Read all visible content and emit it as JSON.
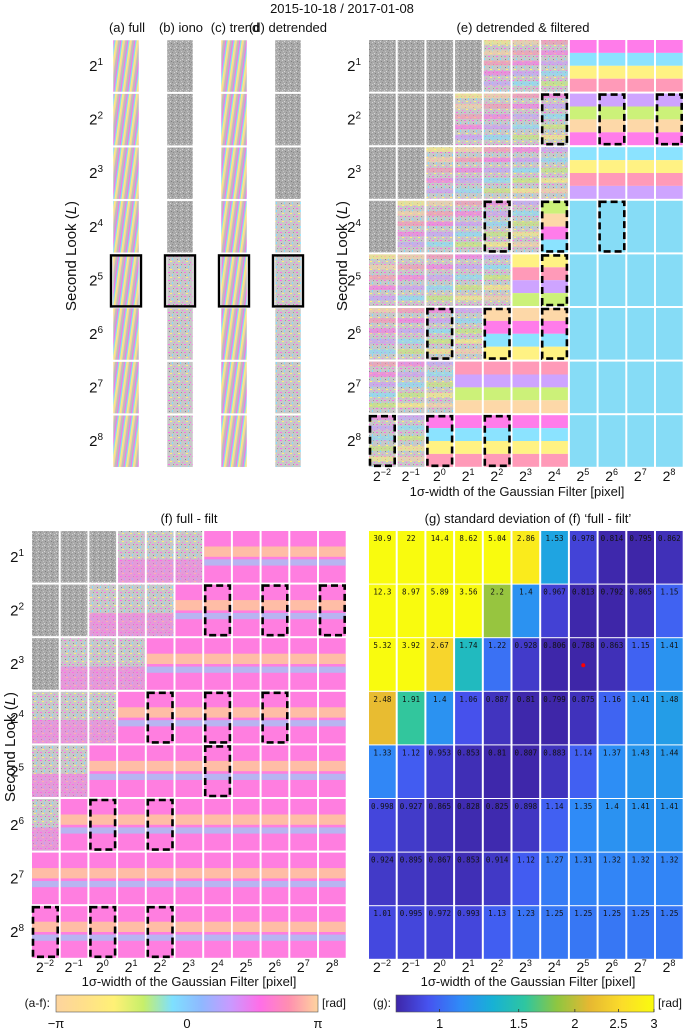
{
  "title": "2015-10-18 / 2017-01-08",
  "row_labels": [
    {
      "base": "2",
      "exp": "1"
    },
    {
      "base": "2",
      "exp": "2"
    },
    {
      "base": "2",
      "exp": "3"
    },
    {
      "base": "2",
      "exp": "4"
    },
    {
      "base": "2",
      "exp": "5"
    },
    {
      "base": "2",
      "exp": "6"
    },
    {
      "base": "2",
      "exp": "7"
    },
    {
      "base": "2",
      "exp": "8"
    }
  ],
  "col_labels": [
    {
      "base": "2",
      "exp": "−2"
    },
    {
      "base": "2",
      "exp": "−1"
    },
    {
      "base": "2",
      "exp": "0"
    },
    {
      "base": "2",
      "exp": "1"
    },
    {
      "base": "2",
      "exp": "2"
    },
    {
      "base": "2",
      "exp": "3"
    },
    {
      "base": "2",
      "exp": "4"
    },
    {
      "base": "2",
      "exp": "5"
    },
    {
      "base": "2",
      "exp": "6"
    },
    {
      "base": "2",
      "exp": "7"
    },
    {
      "base": "2",
      "exp": "8"
    }
  ],
  "ylabel_pre": "Second Look (",
  "ylabel_var": "L",
  "ylabel_post": ")",
  "xlabel": "1σ-width of the Gaussian Filter [pixel]",
  "panels": {
    "a": "(a) full",
    "b": "(b) iono",
    "c": "(c) trend",
    "d": "(d) detrended",
    "e": "(e) detrended & filtered",
    "f": "(f) full - filt",
    "g": "(g) standard deviation of (f) ‘full - filt’"
  },
  "colorbar_phase": {
    "label": "(a-f):",
    "unit": "[rad]",
    "ticks": [
      "−π",
      "0",
      "π"
    ],
    "colors": [
      "#fdd49e",
      "#ffe08a",
      "#fff176",
      "#c6ef6a",
      "#7ee0ff",
      "#8fb8ff",
      "#c99aff",
      "#ff6ee8",
      "#ff8fb0",
      "#fdd49e"
    ]
  },
  "colorbar_std": {
    "label": "(g):",
    "unit": "[rad]",
    "ticks": [
      "1",
      "1.5",
      "2",
      "2.5",
      "3"
    ],
    "colors": [
      "#3e26a8",
      "#4653f0",
      "#2f8bf7",
      "#17b1d5",
      "#2ec6a0",
      "#8fc640",
      "#e6b832",
      "#fbdc2a",
      "#f9fb0e"
    ]
  },
  "chart_data": {
    "type": "heatmap",
    "title": "(g) standard deviation of (f) ‘full - filt’",
    "xlabel": "1σ-width of the Gaussian Filter [pixel]",
    "ylabel": "Second Look (L)",
    "x": [
      "2^-2",
      "2^-1",
      "2^0",
      "2^1",
      "2^2",
      "2^3",
      "2^4",
      "2^5",
      "2^6",
      "2^7",
      "2^8"
    ],
    "y": [
      "2^1",
      "2^2",
      "2^3",
      "2^4",
      "2^5",
      "2^6",
      "2^7",
      "2^8"
    ],
    "values": [
      [
        "30.9",
        "22",
        "14.4",
        "8.62",
        "5.04",
        "2.86",
        "1.53",
        "0.978",
        "0.814",
        "0.795",
        "0.862"
      ],
      [
        "12.3",
        "8.97",
        "5.89",
        "3.56",
        "2.2",
        "1.4",
        "0.967",
        "0.813",
        "0.792",
        "0.865",
        "1.15"
      ],
      [
        "5.32",
        "3.92",
        "2.67",
        "1.74",
        "1.22",
        "0.928",
        "0.806",
        "0.788",
        "0.863",
        "1.15",
        "1.41"
      ],
      [
        "2.48",
        "1.91",
        "1.4",
        "1.06",
        "0.887",
        "0.81",
        "0.799",
        "0.875",
        "1.16",
        "1.41",
        "1.48"
      ],
      [
        "1.33",
        "1.12",
        "0.953",
        "0.853",
        "0.81",
        "0.807",
        "0.883",
        "1.14",
        "1.37",
        "1.43",
        "1.44"
      ],
      [
        "0.998",
        "0.927",
        "0.865",
        "0.828",
        "0.825",
        "0.898",
        "1.14",
        "1.35",
        "1.4",
        "1.41",
        "1.41"
      ],
      [
        "0.924",
        "0.895",
        "0.867",
        "0.853",
        "0.914",
        "1.12",
        "1.27",
        "1.31",
        "1.32",
        "1.32",
        "1.32"
      ],
      [
        "1.01",
        "0.995",
        "0.972",
        "0.993",
        "1.13",
        "1.23",
        "1.25",
        "1.25",
        "1.25",
        "1.25",
        "1.25"
      ]
    ],
    "color_range": [
      0.8,
      3
    ],
    "colorbar_ticks": [
      1,
      1.5,
      2,
      2.5,
      3
    ],
    "highlight_cell": {
      "row": 2,
      "col": 7
    },
    "highlight_color": "#ff0000",
    "selected_cells_e": [
      [
        1,
        6
      ],
      [
        1,
        8
      ],
      [
        1,
        10
      ],
      [
        3,
        4
      ],
      [
        3,
        6
      ],
      [
        3,
        8
      ],
      [
        4,
        6
      ],
      [
        5,
        2
      ],
      [
        5,
        4
      ],
      [
        5,
        6
      ],
      [
        7,
        0
      ],
      [
        7,
        2
      ],
      [
        7,
        4
      ]
    ],
    "selected_cells_f": [
      [
        1,
        6
      ],
      [
        1,
        8
      ],
      [
        1,
        10
      ],
      [
        3,
        4
      ],
      [
        3,
        6
      ],
      [
        3,
        8
      ],
      [
        4,
        6
      ],
      [
        5,
        2
      ],
      [
        5,
        4
      ],
      [
        7,
        0
      ],
      [
        7,
        2
      ],
      [
        7,
        4
      ]
    ],
    "selected_rows_abcd": [
      4
    ]
  }
}
